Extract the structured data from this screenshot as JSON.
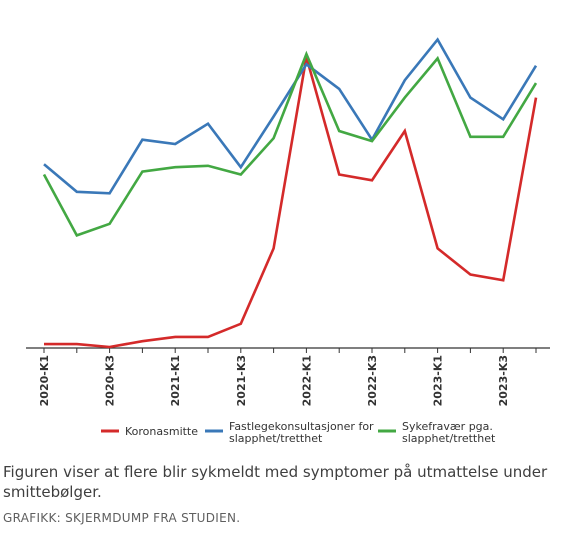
{
  "chart_data": {
    "type": "line",
    "categories": [
      "2020-K1",
      "2020-K2",
      "2020-K3",
      "2020-K4",
      "2021-K1",
      "2021-K2",
      "2021-K3",
      "2021-K4",
      "2022-K1",
      "2022-K2",
      "2022-K3",
      "2022-K4",
      "2023-K1",
      "2023-K2",
      "2023-K3",
      "2023-K4"
    ],
    "tick_labels": [
      "2020-K1",
      "2020-K3",
      "2021-K1",
      "2021-K3",
      "2022-K1",
      "2022-K3",
      "2023-K1",
      "2023-K3"
    ],
    "title": "",
    "xlabel": "",
    "ylabel": "",
    "ylim": [
      0,
      100
    ],
    "grid": false,
    "legend_position": "bottom",
    "series": [
      {
        "name": "Koronasmitte",
        "color": "#d42a2a",
        "values": [
          1,
          1,
          0,
          2,
          3.5,
          3.5,
          8,
          34,
          100,
          59.5,
          57.5,
          74.5,
          34,
          25,
          23,
          86
        ]
      },
      {
        "name": "Fastlegekonsultasjoner for slapphet/tretthet",
        "color": "#3a78b8",
        "values": [
          63,
          53.5,
          53,
          71.5,
          70,
          77,
          62,
          79.5,
          97.5,
          89,
          71.5,
          92,
          106,
          86,
          78.5,
          97
        ]
      },
      {
        "name": "Sykefravær pga. slapphet/tretthet",
        "color": "#43a843",
        "values": [
          59.5,
          38.5,
          42.5,
          60.5,
          62,
          62.5,
          59.5,
          72,
          101,
          74.5,
          71,
          86,
          99.5,
          72.5,
          72.5,
          91
        ]
      }
    ]
  },
  "legend": {
    "items": [
      {
        "lines": [
          "Koronasmitte"
        ],
        "color": "#d42a2a",
        "icon": "red-line-swatch"
      },
      {
        "lines": [
          "Fastlegekonsultasjoner for",
          "slapphet/tretthet"
        ],
        "color": "#3a78b8",
        "icon": "blue-line-swatch"
      },
      {
        "lines": [
          "Sykefravær pga.",
          "slapphet/tretthet"
        ],
        "color": "#43a843",
        "icon": "green-line-swatch"
      }
    ]
  },
  "caption": "Figuren viser at flere blir sykmeldt med symptomer på utmattelse under smittebølger.",
  "credit": "GRAFIKK: SKJERMDUMP FRA STUDIEN."
}
